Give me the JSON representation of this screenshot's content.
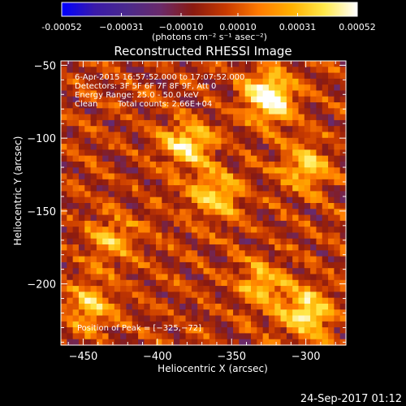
{
  "chart_data": {
    "type": "heatmap",
    "title": "Reconstructed RHESSI Image",
    "xlabel": "Heliocentric X (arcsec)",
    "ylabel": "Heliocentric Y (arcsec)",
    "xlim": [
      -465,
      -273
    ],
    "ylim": [
      -242,
      -47
    ],
    "x_ticks": [
      -450,
      -400,
      -350,
      -300
    ],
    "x_tick_labels": [
      "−450",
      "−400",
      "−350",
      "−300"
    ],
    "y_ticks": [
      -50,
      -100,
      -150,
      -200
    ],
    "y_tick_labels": [
      "−50",
      "−100",
      "−150",
      "−200"
    ],
    "colorbar": {
      "range": [
        -0.00052,
        0.00052
      ],
      "ticks": [
        -0.00052,
        -0.00031,
        -0.0001,
        0.0001,
        0.00031,
        0.00052
      ],
      "tick_labels": [
        "-0.00052",
        "−0.00031",
        "−0.00010",
        "0.00010",
        "0.00031",
        "0.00052"
      ],
      "unit_label": "(photons cm⁻² s⁻¹ asec⁻²)",
      "colors": [
        "#0000ff",
        "#3a1aa8",
        "#4b2a8c",
        "#6a2a6a",
        "#8a1a10",
        "#c83a00",
        "#ff7a00",
        "#ffb000",
        "#ffe94a",
        "#ffffff"
      ]
    },
    "grid": false,
    "annotations": {
      "time_range": "6-Apr-2015 16:57:52.000 to 17:07:52.000",
      "detectors": "Detectors: 3F 5F 6F 7F 8F 9F, Att 0",
      "energy": "Energy Range: 25.0 - 50.0 keV",
      "clean_method": "Clean",
      "total_counts": "Total counts: 2.66E+04",
      "peak_position": "Position of Peak = [−325,−72]"
    },
    "peak": {
      "x": -325,
      "y": -72
    },
    "bright_regions": [
      {
        "x": -325,
        "y": -72,
        "intensity": 1.0
      },
      {
        "x": -380,
        "y": -105,
        "intensity": 0.75
      },
      {
        "x": -360,
        "y": -140,
        "intensity": 0.65
      },
      {
        "x": -300,
        "y": -120,
        "intensity": 0.6
      },
      {
        "x": -445,
        "y": -215,
        "intensity": 0.6
      },
      {
        "x": -300,
        "y": -220,
        "intensity": 0.8
      },
      {
        "x": -330,
        "y": -200,
        "intensity": 0.55
      },
      {
        "x": -430,
        "y": -170,
        "intensity": 0.45
      }
    ]
  },
  "footer": {
    "date": "24-Sep-2017 01:12"
  }
}
